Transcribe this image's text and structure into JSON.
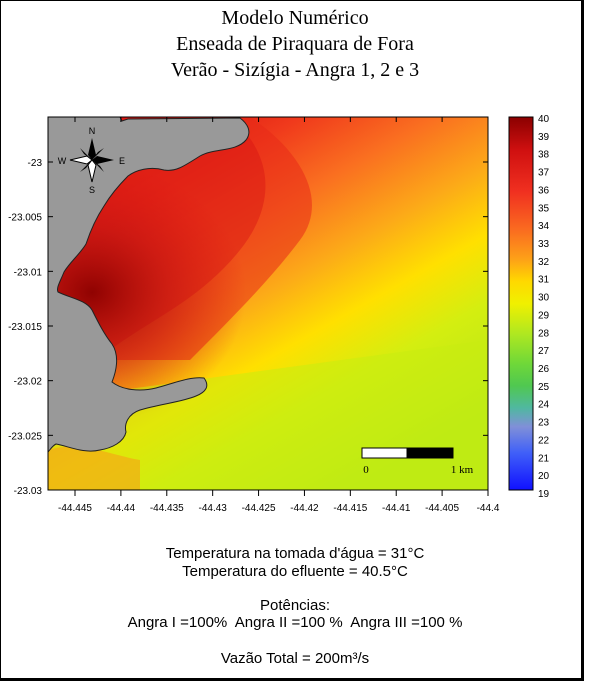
{
  "title": {
    "line1": "Modelo Numérico",
    "line2": "Enseada de Piraquara de Fora",
    "line3": "Verão - Sizígia - Angra 1, 2 e 3"
  },
  "map": {
    "y_ticks": [
      "-23",
      "-23.005",
      "-23.01",
      "-23.015",
      "-23.02",
      "-23.025",
      "-23.03"
    ],
    "x_ticks": [
      "-44.445",
      "-44.44",
      "-44.435",
      "-44.43",
      "-44.425",
      "-44.42",
      "-44.415",
      "-44.41",
      "-44.405",
      "-44.4"
    ],
    "compass": {
      "n": "N",
      "s": "S",
      "e": "E",
      "w": "W"
    },
    "scale_bar": {
      "start": "0",
      "end": "1 km"
    },
    "land_color": "#999999"
  },
  "colorbar": {
    "labels": [
      "40",
      "39",
      "38",
      "37",
      "36",
      "35",
      "34",
      "33",
      "32",
      "31",
      "30",
      "29",
      "28",
      "27",
      "26",
      "25",
      "24",
      "23",
      "22",
      "21",
      "20",
      "19"
    ],
    "colors": [
      "#8b0000",
      "#c00000",
      "#e01818",
      "#f03020",
      "#f84828",
      "#fa6028",
      "#fc7c20",
      "#fe9a18",
      "#ffc010",
      "#f8f000",
      "#d8f000",
      "#a8e828",
      "#78d838",
      "#58d048",
      "#40c860",
      "#60c0b0",
      "#8098e0",
      "#6080f0",
      "#4060f8",
      "#3040ff",
      "#2020ff",
      "#1010ff"
    ]
  },
  "info": {
    "line1": "Temperatura na tomada d'água = 31°C",
    "line2": "Temperatura do efluente = 40.5°C",
    "line3": "Potências:",
    "line4": "Angra I =100%  Angra II =100 %  Angra III =100 %",
    "line5": "Vazão Total = 200m³/s"
  }
}
